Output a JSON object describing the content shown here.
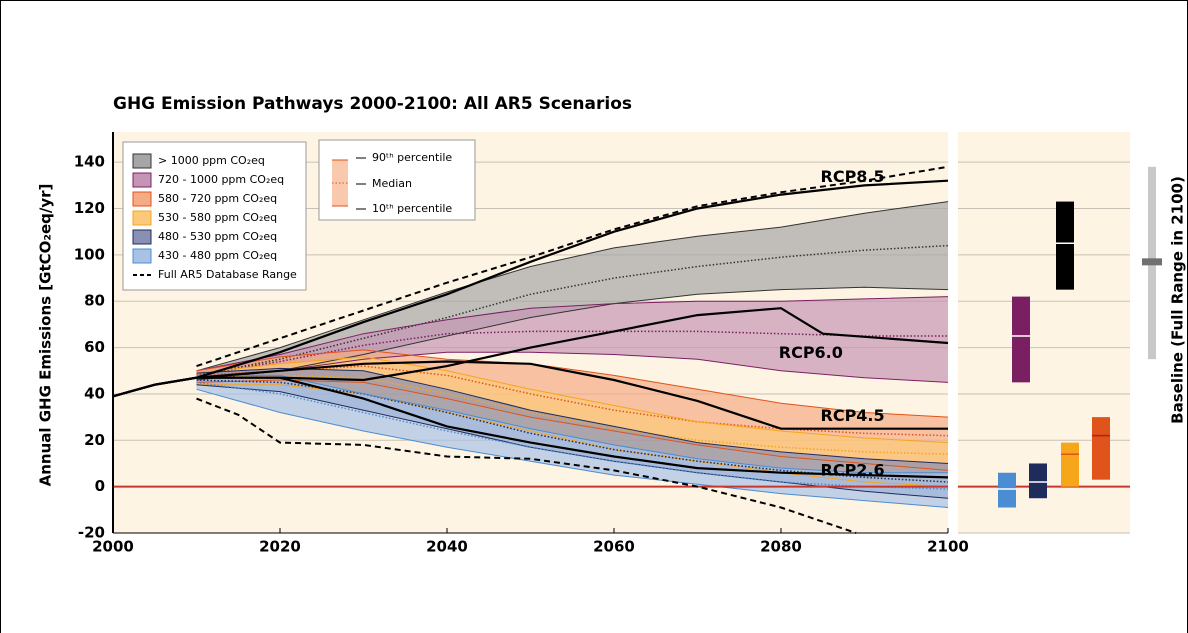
{
  "chart_data": {
    "type": "band-line",
    "title": "GHG Emission Pathways 2000-2100: All AR5 Scenarios",
    "y_label": "Annual GHG Emissions [GtCO₂eq/yr]",
    "xlim": [
      2000,
      2100
    ],
    "ylim": [
      -20,
      150
    ],
    "xticks": [
      2000,
      2020,
      2040,
      2060,
      2080,
      2100
    ],
    "yticks": [
      -20,
      0,
      20,
      40,
      60,
      80,
      100,
      120,
      140
    ],
    "grid": true,
    "zero_line_color": "#c8372d",
    "series": [
      {
        "name": "> 1000 ppm CO₂eq",
        "color": "#000000",
        "fill": "#a6a6a6",
        "line": "#333333",
        "x": [
          2010,
          2020,
          2030,
          2040,
          2050,
          2060,
          2070,
          2080,
          2090,
          2100
        ],
        "p90": [
          50,
          60,
          72,
          84,
          95,
          103,
          108,
          112,
          118,
          123
        ],
        "median": [
          48,
          55,
          64,
          73,
          83,
          90,
          95,
          99,
          102,
          104
        ],
        "p10": [
          46,
          50,
          57,
          65,
          73,
          79,
          83,
          85,
          86,
          85
        ],
        "box_2100": [
          85,
          105,
          123
        ]
      },
      {
        "name": "720 - 1000 ppm CO₂eq",
        "color": "#7b1f63",
        "fill": "#c495b4",
        "line": "#7b1f63",
        "x": [
          2010,
          2020,
          2030,
          2040,
          2050,
          2060,
          2070,
          2080,
          2090,
          2100
        ],
        "p90": [
          50,
          57,
          66,
          72,
          77,
          79,
          80,
          80,
          81,
          82
        ],
        "median": [
          48,
          54,
          61,
          66,
          67,
          67,
          67,
          66,
          65,
          65
        ],
        "p10": [
          46,
          50,
          55,
          58,
          58,
          57,
          55,
          50,
          47,
          45
        ],
        "box_2100": [
          45,
          65,
          82
        ]
      },
      {
        "name": "580 - 720 ppm CO₂eq",
        "color": "#e0531a",
        "fill": "#f4ab86",
        "line": "#e0531a",
        "x": [
          2010,
          2020,
          2030,
          2040,
          2050,
          2060,
          2070,
          2080,
          2090,
          2100
        ],
        "p90": [
          50,
          56,
          59,
          55,
          53,
          48,
          42,
          36,
          32,
          30
        ],
        "median": [
          48,
          50,
          52,
          48,
          40,
          33,
          28,
          25,
          23,
          22
        ],
        "p10": [
          45,
          46,
          45,
          38,
          30,
          24,
          18,
          13,
          10,
          7
        ],
        "box_2100": [
          3,
          22,
          30
        ]
      },
      {
        "name": "530 - 580 ppm CO₂eq",
        "color": "#f6a61b",
        "fill": "#fcc97a",
        "line": "#f6a61b",
        "x": [
          2010,
          2020,
          2030,
          2040,
          2050,
          2060,
          2070,
          2080,
          2090,
          2100
        ],
        "p90": [
          49,
          53,
          56,
          50,
          42,
          35,
          28,
          24,
          21,
          19
        ],
        "median": [
          47,
          48,
          47,
          40,
          32,
          25,
          20,
          17,
          15,
          14
        ],
        "p10": [
          44,
          44,
          40,
          32,
          24,
          16,
          11,
          6,
          2,
          0
        ],
        "box_2100": [
          0,
          14,
          19
        ]
      },
      {
        "name": "480 - 530 ppm CO₂eq",
        "color": "#1f2c5b",
        "fill": "#8a90b4",
        "line": "#1f2c5b",
        "x": [
          2010,
          2020,
          2030,
          2040,
          2050,
          2060,
          2070,
          2080,
          2090,
          2100
        ],
        "p90": [
          49,
          51,
          50,
          42,
          33,
          26,
          19,
          15,
          12,
          10
        ],
        "median": [
          46,
          45,
          40,
          32,
          23,
          16,
          11,
          7,
          4,
          2
        ],
        "p10": [
          44,
          41,
          33,
          25,
          17,
          11,
          6,
          2,
          -2,
          -5
        ],
        "box_2100": [
          -5,
          2,
          10
        ]
      },
      {
        "name": "430 - 480 ppm CO₂eq",
        "color": "#4a8dd3",
        "fill": "#a8c2e6",
        "line": "#4a8dd3",
        "x": [
          2010,
          2020,
          2030,
          2040,
          2050,
          2060,
          2070,
          2080,
          2090,
          2100
        ],
        "p90": [
          48,
          48,
          40,
          33,
          25,
          18,
          12,
          8,
          6,
          6
        ],
        "median": [
          45,
          40,
          32,
          24,
          17,
          11,
          6,
          2,
          0,
          -1
        ],
        "p10": [
          42,
          32,
          24,
          17,
          11,
          5,
          1,
          -3,
          -6,
          -9
        ],
        "box_2100": [
          -9,
          -1,
          6
        ]
      }
    ],
    "full_range": {
      "name": "Full AR5 Database Range",
      "upper": {
        "x": [
          2010,
          2020,
          2030,
          2040,
          2050,
          2060,
          2070,
          2080,
          2090,
          2100
        ],
        "values": [
          52,
          64,
          76,
          88,
          99,
          111,
          121,
          127,
          132,
          138
        ]
      },
      "lower": {
        "x": [
          2010,
          2015,
          2020,
          2030,
          2040,
          2050,
          2060,
          2070,
          2080,
          2089
        ],
        "values": [
          38,
          31,
          19,
          18,
          13,
          12,
          7,
          0,
          -9,
          -20
        ]
      }
    },
    "percentile_legend": {
      "p90": "90ᵗʰ percentile",
      "median": "Median",
      "p10": "10ᵗʰ percentile"
    },
    "rcp": [
      {
        "name": "RCP8.5",
        "x": [
          2000,
          2005,
          2010,
          2020,
          2030,
          2040,
          2050,
          2060,
          2070,
          2080,
          2090,
          2100
        ],
        "values": [
          39,
          44,
          47,
          58,
          71,
          83,
          97,
          110,
          120,
          126,
          130,
          132
        ]
      },
      {
        "name": "RCP6.0",
        "x": [
          2000,
          2005,
          2010,
          2020,
          2030,
          2040,
          2050,
          2060,
          2070,
          2080,
          2085,
          2100
        ],
        "values": [
          39,
          44,
          47,
          47,
          46,
          52,
          60,
          67,
          74,
          77,
          66,
          62
        ]
      },
      {
        "name": "RCP4.5",
        "x": [
          2000,
          2005,
          2010,
          2020,
          2030,
          2040,
          2050,
          2060,
          2070,
          2080,
          2090,
          2100
        ],
        "values": [
          39,
          44,
          47,
          50,
          53,
          54,
          53,
          46,
          37,
          25,
          25,
          25
        ]
      },
      {
        "name": "RCP2.6",
        "x": [
          2000,
          2005,
          2010,
          2020,
          2030,
          2040,
          2050,
          2060,
          2070,
          2080,
          2090,
          2100
        ],
        "values": [
          39,
          44,
          47,
          47,
          38,
          26,
          19,
          13,
          8,
          6,
          5,
          4
        ]
      }
    ],
    "baseline": {
      "label": "Baseline (Full Range in 2100)",
      "low": 55,
      "median": 97,
      "high": 138
    }
  }
}
